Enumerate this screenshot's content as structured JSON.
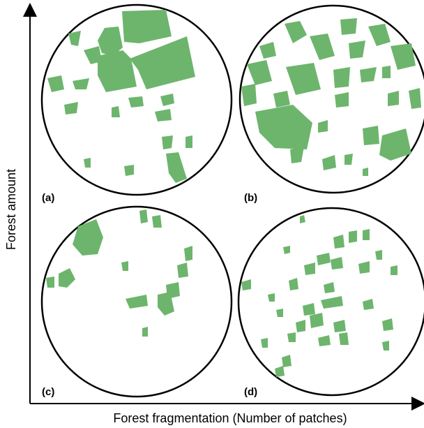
{
  "figure": {
    "x_axis_label": "Forest fragmentation (Number of patches)",
    "y_axis_label": "Forest amount",
    "patch_color": "#6db56d",
    "panels": [
      {
        "id": "a",
        "label": "(a)"
      },
      {
        "id": "b",
        "label": "(b)"
      },
      {
        "id": "c",
        "label": "(c)"
      },
      {
        "id": "d",
        "label": "(d)"
      }
    ]
  }
}
